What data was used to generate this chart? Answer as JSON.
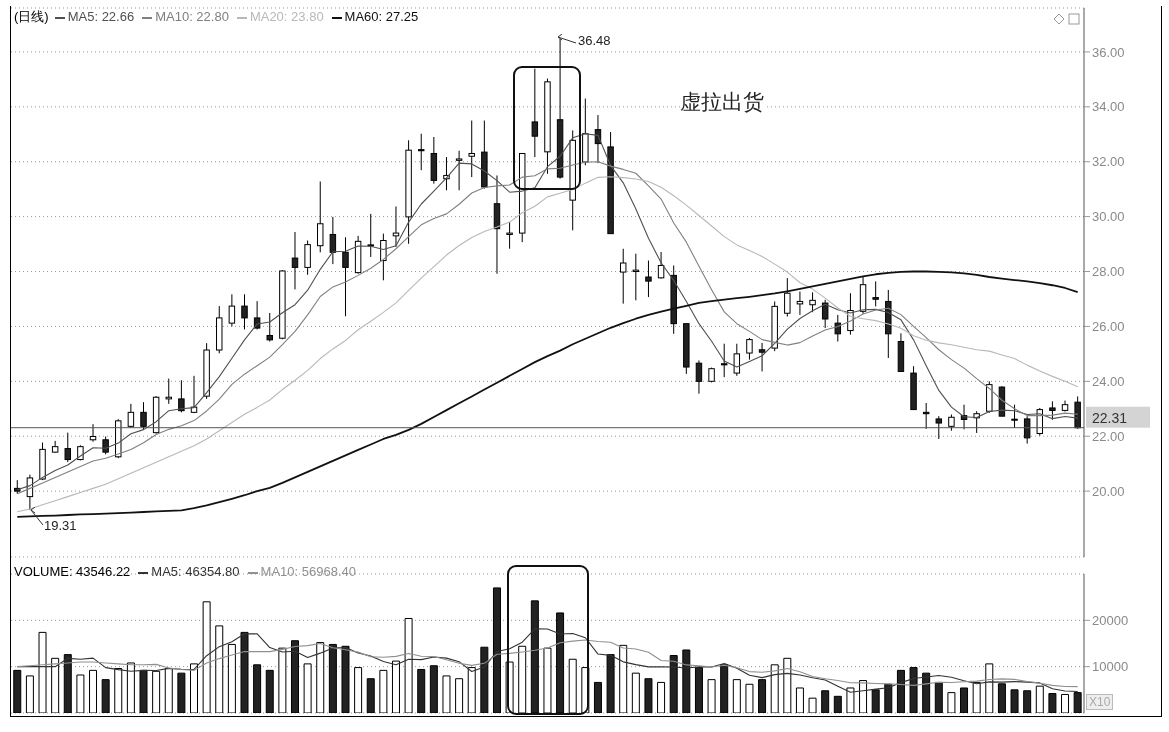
{
  "chart_data": [
    {
      "type": "candlestick",
      "title": "(日线)",
      "legend": "top left",
      "marker": "none",
      "tick_labels": "y",
      "grid": "y",
      "categories": [
        null,
        null,
        null,
        null,
        null,
        null,
        null,
        null,
        null,
        null,
        null,
        null,
        null,
        null,
        null,
        null,
        null,
        null,
        null,
        null,
        null,
        null,
        null,
        null,
        null,
        null,
        null,
        null,
        null,
        null,
        null,
        null,
        null,
        null,
        null,
        null,
        null,
        null,
        null,
        null,
        null,
        null,
        null,
        null,
        null,
        null,
        null,
        null,
        null,
        null,
        null,
        null,
        null,
        null,
        null,
        null,
        null,
        null,
        null,
        null,
        null,
        null,
        null,
        null,
        null,
        null,
        null,
        null,
        null,
        null,
        null,
        null,
        null,
        null,
        null,
        null,
        null,
        null,
        null,
        null,
        null,
        null,
        null,
        null,
        null
      ],
      "ohlc": [
        [
          20.1,
          20.4,
          19.9,
          20.0
        ],
        [
          19.8,
          20.6,
          19.31,
          20.48
        ],
        [
          20.44,
          21.77,
          20.4,
          21.52
        ],
        [
          21.42,
          21.83,
          21.4,
          21.62
        ],
        [
          21.55,
          22.13,
          21.06,
          21.15
        ],
        [
          21.15,
          21.67,
          21.12,
          21.62
        ],
        [
          21.87,
          22.44,
          21.8,
          21.99
        ],
        [
          21.87,
          21.99,
          21.34,
          21.42
        ],
        [
          21.25,
          22.62,
          21.2,
          22.56
        ],
        [
          22.36,
          23.18,
          22.32,
          22.87
        ],
        [
          22.87,
          23.24,
          22.26,
          22.36
        ],
        [
          22.13,
          23.46,
          22.1,
          23.42
        ],
        [
          23.36,
          24.1,
          23.18,
          23.42
        ],
        [
          23.36,
          24.04,
          22.87,
          22.93
        ],
        [
          22.87,
          24.2,
          22.84,
          23.06
        ],
        [
          23.46,
          25.39,
          23.36,
          25.14
        ],
        [
          25.14,
          26.74,
          25.02,
          26.31
        ],
        [
          26.12,
          27.17,
          26.0,
          26.74
        ],
        [
          26.74,
          27.17,
          25.89,
          26.31
        ],
        [
          26.31,
          26.92,
          25.89,
          25.94
        ],
        [
          25.67,
          26.49,
          25.45,
          25.51
        ],
        [
          25.57,
          28.05,
          25.53,
          28.02
        ],
        [
          28.49,
          29.44,
          27.35,
          28.15
        ],
        [
          28.15,
          29.13,
          27.88,
          28.98
        ],
        [
          28.94,
          31.28,
          28.7,
          29.74
        ],
        [
          29.35,
          29.99,
          28.27,
          28.7
        ],
        [
          28.7,
          29.25,
          26.37,
          28.15
        ],
        [
          27.96,
          29.3,
          27.92,
          29.1
        ],
        [
          28.97,
          30.1,
          28.53,
          28.93
        ],
        [
          28.4,
          29.38,
          27.68,
          29.13
        ],
        [
          29.3,
          30.37,
          28.9,
          29.4
        ],
        [
          29.99,
          32.78,
          29.01,
          32.42
        ],
        [
          32.44,
          33.02,
          31.69,
          32.4
        ],
        [
          32.3,
          32.9,
          31.2,
          31.32
        ],
        [
          31.38,
          32.17,
          30.96,
          31.5
        ],
        [
          32.05,
          32.4,
          30.96,
          32.1
        ],
        [
          32.2,
          33.5,
          31.44,
          32.3
        ],
        [
          32.35,
          33.5,
          31.02,
          31.08
        ],
        [
          30.47,
          31.5,
          27.92,
          29.56
        ],
        [
          29.35,
          29.8,
          28.83,
          29.4
        ],
        [
          29.4,
          32.3,
          29.07,
          32.3
        ],
        [
          33.45,
          35.39,
          32.17,
          32.93
        ],
        [
          32.36,
          35.03,
          31.56,
          34.91
        ],
        [
          33.53,
          36.48,
          31.38,
          31.44
        ],
        [
          30.6,
          33.14,
          29.5,
          32.78
        ],
        [
          31.99,
          34.3,
          31.87,
          33.02
        ],
        [
          33.17,
          33.7,
          31.95,
          32.66
        ],
        [
          32.54,
          33.08,
          29.38,
          29.38
        ],
        [
          27.98,
          28.83,
          26.83,
          28.31
        ],
        [
          28.0,
          28.65,
          26.95,
          28.05
        ],
        [
          27.8,
          28.4,
          27.07,
          27.65
        ],
        [
          27.77,
          28.71,
          27.74,
          28.22
        ],
        [
          27.86,
          28.22,
          25.73,
          26.1
        ],
        [
          26.1,
          26.1,
          24.27,
          24.52
        ],
        [
          24.66,
          24.76,
          23.55,
          24.0
        ],
        [
          24.0,
          24.5,
          23.96,
          24.46
        ],
        [
          24.64,
          25.37,
          24.15,
          24.6
        ],
        [
          24.3,
          25.37,
          24.2,
          25.0
        ],
        [
          25.03,
          25.58,
          24.79,
          25.52
        ],
        [
          25.15,
          25.4,
          24.36,
          25.06
        ],
        [
          25.21,
          26.91,
          25.1,
          26.73
        ],
        [
          26.48,
          27.76,
          26.36,
          27.21
        ],
        [
          26.82,
          27.27,
          26.42,
          26.91
        ],
        [
          26.79,
          27.24,
          26.52,
          26.95
        ],
        [
          26.85,
          26.97,
          25.94,
          26.27
        ],
        [
          26.12,
          26.42,
          25.45,
          25.73
        ],
        [
          25.85,
          27.21,
          25.7,
          26.58
        ],
        [
          26.55,
          27.82,
          26.46,
          27.52
        ],
        [
          27.05,
          27.64,
          26.73,
          26.99
        ],
        [
          26.91,
          27.33,
          24.85,
          25.73
        ],
        [
          25.45,
          25.75,
          24.36,
          24.36
        ],
        [
          24.3,
          24.55,
          22.97,
          22.97
        ],
        [
          22.87,
          23.21,
          22.27,
          22.82
        ],
        [
          22.63,
          22.73,
          21.9,
          22.48
        ],
        [
          22.36,
          22.79,
          22.2,
          22.69
        ],
        [
          22.75,
          23.15,
          22.25,
          22.61
        ],
        [
          22.67,
          22.91,
          22.12,
          22.82
        ],
        [
          22.91,
          24.0,
          22.85,
          23.88
        ],
        [
          23.79,
          23.82,
          22.73,
          22.73
        ],
        [
          22.62,
          23.15,
          22.3,
          22.6
        ],
        [
          22.63,
          22.73,
          21.73,
          21.94
        ],
        [
          22.1,
          23.03,
          22.02,
          22.97
        ],
        [
          23.03,
          23.27,
          22.6,
          22.94
        ],
        [
          22.94,
          23.3,
          22.9,
          23.15
        ],
        [
          23.24,
          23.45,
          22.27,
          22.31
        ]
      ],
      "series": [
        {
          "type": "line",
          "name": "MA5: 22.66",
          "color": "#505050",
          "values": [
            20.05,
            20.2,
            20.5,
            20.75,
            20.95,
            21.28,
            21.58,
            21.56,
            21.75,
            22.09,
            22.24,
            22.53,
            22.93,
            23.0,
            23.04,
            23.59,
            24.17,
            24.84,
            25.51,
            26.09,
            26.16,
            26.5,
            26.79,
            27.32,
            28.08,
            28.72,
            28.74,
            28.93,
            28.92,
            28.8,
            28.94,
            29.8,
            30.46,
            30.93,
            31.41,
            31.95,
            31.92,
            31.66,
            31.31,
            30.89,
            30.93,
            31.05,
            31.82,
            32.2,
            32.87,
            33.02,
            32.96,
            31.86,
            31.23,
            30.28,
            29.21,
            28.32,
            27.67,
            26.91,
            26.1,
            25.46,
            24.74,
            24.52,
            24.72,
            24.93,
            25.38,
            25.9,
            26.29,
            26.57,
            26.81,
            26.61,
            26.49,
            26.61,
            26.62,
            26.51,
            26.24,
            25.51,
            24.57,
            23.67,
            23.06,
            22.71,
            22.68,
            22.9,
            22.95,
            22.93,
            22.79,
            22.82,
            22.64,
            22.72,
            22.66
          ]
        },
        {
          "type": "line",
          "name": "MA10: 22.80",
          "color": "#808080",
          "values": [
            19.9,
            20.1,
            20.3,
            20.5,
            20.7,
            20.9,
            21.1,
            21.2,
            21.35,
            21.52,
            21.76,
            22.06,
            22.25,
            22.38,
            22.57,
            22.92,
            23.35,
            23.89,
            24.26,
            24.57,
            24.88,
            25.34,
            25.82,
            26.42,
            27.09,
            27.44,
            27.62,
            27.86,
            28.12,
            28.44,
            28.83,
            29.27,
            29.7,
            29.93,
            30.1,
            30.45,
            30.86,
            31.06,
            31.12,
            31.15,
            31.44,
            31.49,
            31.74,
            31.76,
            31.88,
            31.98,
            32.0,
            31.84,
            31.72,
            31.58,
            31.12,
            30.64,
            29.77,
            29.07,
            28.19,
            27.34,
            26.53,
            26.1,
            25.82,
            25.52,
            25.42,
            25.32,
            25.41,
            25.65,
            25.87,
            26.0,
            26.2,
            26.45,
            26.6,
            26.66,
            26.43,
            26.0,
            25.59,
            25.15,
            24.79,
            24.48,
            24.1,
            23.74,
            23.31,
            23.0,
            22.75,
            22.75,
            22.77,
            22.84,
            22.8
          ]
        },
        {
          "type": "line",
          "name": "MA20: 23.80",
          "color": "#b8b8b8",
          "values": [
            19.25,
            19.35,
            19.5,
            19.65,
            19.8,
            19.95,
            20.1,
            20.25,
            20.45,
            20.65,
            20.85,
            21.05,
            21.25,
            21.45,
            21.65,
            21.9,
            22.2,
            22.5,
            22.8,
            23.05,
            23.32,
            23.7,
            24.04,
            24.4,
            24.83,
            25.18,
            25.49,
            25.88,
            26.19,
            26.51,
            26.86,
            27.31,
            27.76,
            28.18,
            28.6,
            28.95,
            29.24,
            29.46,
            29.62,
            29.8,
            30.14,
            30.38,
            30.72,
            30.85,
            30.99,
            31.22,
            31.43,
            31.45,
            31.42,
            31.37,
            31.28,
            31.07,
            30.76,
            30.42,
            30.04,
            29.66,
            29.27,
            28.97,
            28.77,
            28.55,
            28.27,
            27.98,
            27.59,
            27.36,
            27.03,
            26.67,
            26.37,
            26.28,
            26.21,
            26.09,
            25.93,
            25.66,
            25.5,
            25.4,
            25.33,
            25.24,
            25.15,
            25.1,
            24.96,
            24.83,
            24.59,
            24.38,
            24.18,
            24.0,
            23.8
          ]
        },
        {
          "type": "line",
          "name": "MA60: 27.25",
          "color": "#111111",
          "values": [
            19.06,
            19.08,
            19.1,
            19.11,
            19.13,
            19.15,
            19.16,
            19.18,
            19.2,
            19.22,
            19.24,
            19.26,
            19.28,
            19.3,
            19.38,
            19.48,
            19.6,
            19.72,
            19.85,
            20.0,
            20.12,
            20.3,
            20.5,
            20.7,
            20.9,
            21.1,
            21.3,
            21.5,
            21.7,
            21.9,
            22.05,
            22.23,
            22.45,
            22.7,
            22.95,
            23.2,
            23.45,
            23.7,
            23.95,
            24.2,
            24.45,
            24.7,
            24.92,
            25.12,
            25.35,
            25.55,
            25.75,
            25.95,
            26.12,
            26.28,
            26.42,
            26.54,
            26.65,
            26.75,
            26.86,
            26.92,
            26.98,
            27.03,
            27.08,
            27.14,
            27.2,
            27.28,
            27.37,
            27.46,
            27.55,
            27.64,
            27.73,
            27.82,
            27.9,
            27.95,
            27.99,
            28.0,
            28.0,
            27.99,
            27.97,
            27.93,
            27.88,
            27.8,
            27.74,
            27.69,
            27.64,
            27.58,
            27.5,
            27.4,
            27.25
          ]
        }
      ],
      "ylim": [
        17.6,
        37.6
      ],
      "yticks": [
        {
          "value": 20,
          "label": "20.00"
        },
        {
          "value": 22,
          "label": "22.00"
        },
        {
          "value": 24,
          "label": "24.00"
        },
        {
          "value": 26,
          "label": "26.00"
        },
        {
          "value": 28,
          "label": "28.00"
        },
        {
          "value": 30,
          "label": "30.00"
        },
        {
          "value": 32,
          "label": "32.00"
        },
        {
          "value": 34,
          "label": "34.00"
        },
        {
          "value": 36,
          "label": "36.00"
        }
      ],
      "ref_lines": [
        {
          "axis": "y",
          "value": 22.31,
          "label": "22.31",
          "color": "#555555"
        }
      ],
      "annotations": [
        "36.48",
        "19.31",
        "虚拉出货"
      ]
    },
    {
      "type": "bar",
      "legend": "top left",
      "marker": "none",
      "tick_labels": "y",
      "grid": "y",
      "categories": [
        null,
        null,
        null,
        null,
        null,
        null,
        null,
        null,
        null,
        null,
        null,
        null,
        null,
        null,
        null,
        null,
        null,
        null,
        null,
        null,
        null,
        null,
        null,
        null,
        null,
        null,
        null,
        null,
        null,
        null,
        null,
        null,
        null,
        null,
        null,
        null,
        null,
        null,
        null,
        null,
        null,
        null,
        null,
        null,
        null,
        null,
        null,
        null,
        null,
        null,
        null,
        null,
        null,
        null,
        null,
        null,
        null,
        null,
        null,
        null,
        null,
        null,
        null,
        null,
        null,
        null,
        null,
        null,
        null,
        null,
        null,
        null,
        null,
        null,
        null,
        null,
        null,
        null,
        null,
        null,
        null,
        null,
        null,
        null,
        null
      ],
      "series": [
        {
          "type": "bar",
          "name": "VOLUME: 43546.22",
          "values": [
            9200,
            8000,
            17400,
            11800,
            12600,
            8200,
            9200,
            7200,
            9600,
            10800,
            9200,
            9000,
            9600,
            8600,
            10600,
            24000,
            18800,
            14800,
            17400,
            10400,
            9200,
            14000,
            15600,
            10600,
            15200,
            14800,
            14400,
            9800,
            7400,
            9200,
            11200,
            20400,
            9400,
            10200,
            8000,
            7400,
            9800,
            14200,
            27000,
            11000,
            14400,
            24200,
            14000,
            21600,
            11600,
            9800,
            6600,
            12600,
            14600,
            8600,
            7400,
            6600,
            12400,
            13600,
            9800,
            7200,
            10400,
            7200,
            6200,
            7200,
            10400,
            11800,
            5400,
            3200,
            4800,
            3600,
            5400,
            7000,
            5000,
            6200,
            9200,
            9800,
            8600,
            6600,
            4400,
            5400,
            6600,
            10600,
            6300,
            5000,
            4800,
            5800,
            4200,
            4000,
            4400
          ],
          "colors": [
            "#222222",
            "#ffffff",
            "#ffffff",
            "#ffffff",
            "#222222",
            "#ffffff",
            "#ffffff",
            "#222222",
            "#ffffff",
            "#ffffff",
            "#222222",
            "#ffffff",
            "#ffffff",
            "#222222",
            "#ffffff",
            "#ffffff",
            "#ffffff",
            "#ffffff",
            "#222222",
            "#222222",
            "#222222",
            "#ffffff",
            "#222222",
            "#ffffff",
            "#ffffff",
            "#222222",
            "#222222",
            "#ffffff",
            "#222222",
            "#ffffff",
            "#ffffff",
            "#ffffff",
            "#222222",
            "#222222",
            "#ffffff",
            "#ffffff",
            "#ffffff",
            "#222222",
            "#222222",
            "#ffffff",
            "#ffffff",
            "#222222",
            "#ffffff",
            "#222222",
            "#ffffff",
            "#ffffff",
            "#222222",
            "#222222",
            "#ffffff",
            "#ffffff",
            "#222222",
            "#ffffff",
            "#222222",
            "#222222",
            "#222222",
            "#ffffff",
            "#222222",
            "#ffffff",
            "#ffffff",
            "#222222",
            "#ffffff",
            "#ffffff",
            "#ffffff",
            "#ffffff",
            "#222222",
            "#222222",
            "#ffffff",
            "#ffffff",
            "#222222",
            "#222222",
            "#222222",
            "#222222",
            "#222222",
            "#222222",
            "#ffffff",
            "#222222",
            "#ffffff",
            "#ffffff",
            "#222222",
            "#222222",
            "#222222",
            "#ffffff",
            "#222222",
            "#ffffff",
            "#222222"
          ]
        },
        {
          "type": "line",
          "name": "MA5: 46354.80",
          "color": "#333333",
          "values": [
            10000,
            10000,
            10000,
            10000,
            11800,
            11600,
            11840,
            9800,
            9360,
            9000,
            9200,
            9160,
            9640,
            9440,
            9400,
            12360,
            14320,
            15360,
            17120,
            17080,
            14120,
            13160,
            13320,
            11960,
            12920,
            14040,
            14120,
            12960,
            12320,
            11120,
            10400,
            11600,
            11520,
            12080,
            11840,
            11080,
            8960,
            9920,
            13280,
            13880,
            15280,
            18160,
            18120,
            17040,
            17160,
            16240,
            12720,
            12440,
            11040,
            10440,
            9960,
            9960,
            9920,
            9720,
            9960,
            9920,
            10680,
            9640,
            8160,
            7640,
            8280,
            8560,
            8200,
            7600,
            7120,
            5760,
            4480,
            4800,
            5160,
            5440,
            6560,
            7440,
            7760,
            8080,
            7720,
            6960,
            6320,
            6720,
            6660,
            6780,
            6660,
            6500,
            5220,
            4760,
            4635
          ]
        },
        {
          "type": "line",
          "name": "MA10: 56968.40",
          "color": "#909090",
          "values": [
            10000,
            10200,
            10400,
            10600,
            10800,
            11000,
            11000,
            10800,
            10600,
            10400,
            10400,
            10500,
            9720,
            9400,
            9200,
            10780,
            11740,
            12500,
            13280,
            13240,
            13240,
            13740,
            14340,
            14540,
            15000,
            14080,
            13640,
            13140,
            12140,
            12020,
            12220,
            12860,
            12240,
            12200,
            11480,
            10740,
            10280,
            10720,
            12680,
            12860,
            13180,
            13560,
            14020,
            15160,
            15520,
            15760,
            15440,
            15280,
            14040,
            13800,
            13100,
            11340,
            11180,
            10380,
            10200,
            9940,
            10320,
            9780,
            8940,
            8800,
            9100,
            9620,
            8920,
            7880,
            7380,
            7020,
            6520,
            6500,
            6380,
            6280,
            6160,
            5960,
            6280,
            6620,
            6580,
            6760,
            6880,
            7240,
            7370,
            7250,
            6810,
            6410,
            5970,
            5710,
            5697
          ]
        }
      ],
      "ylim": [
        0,
        30000
      ],
      "yticks": [
        10000,
        20000
      ],
      "annotations": [
        "X10"
      ]
    }
  ]
}
